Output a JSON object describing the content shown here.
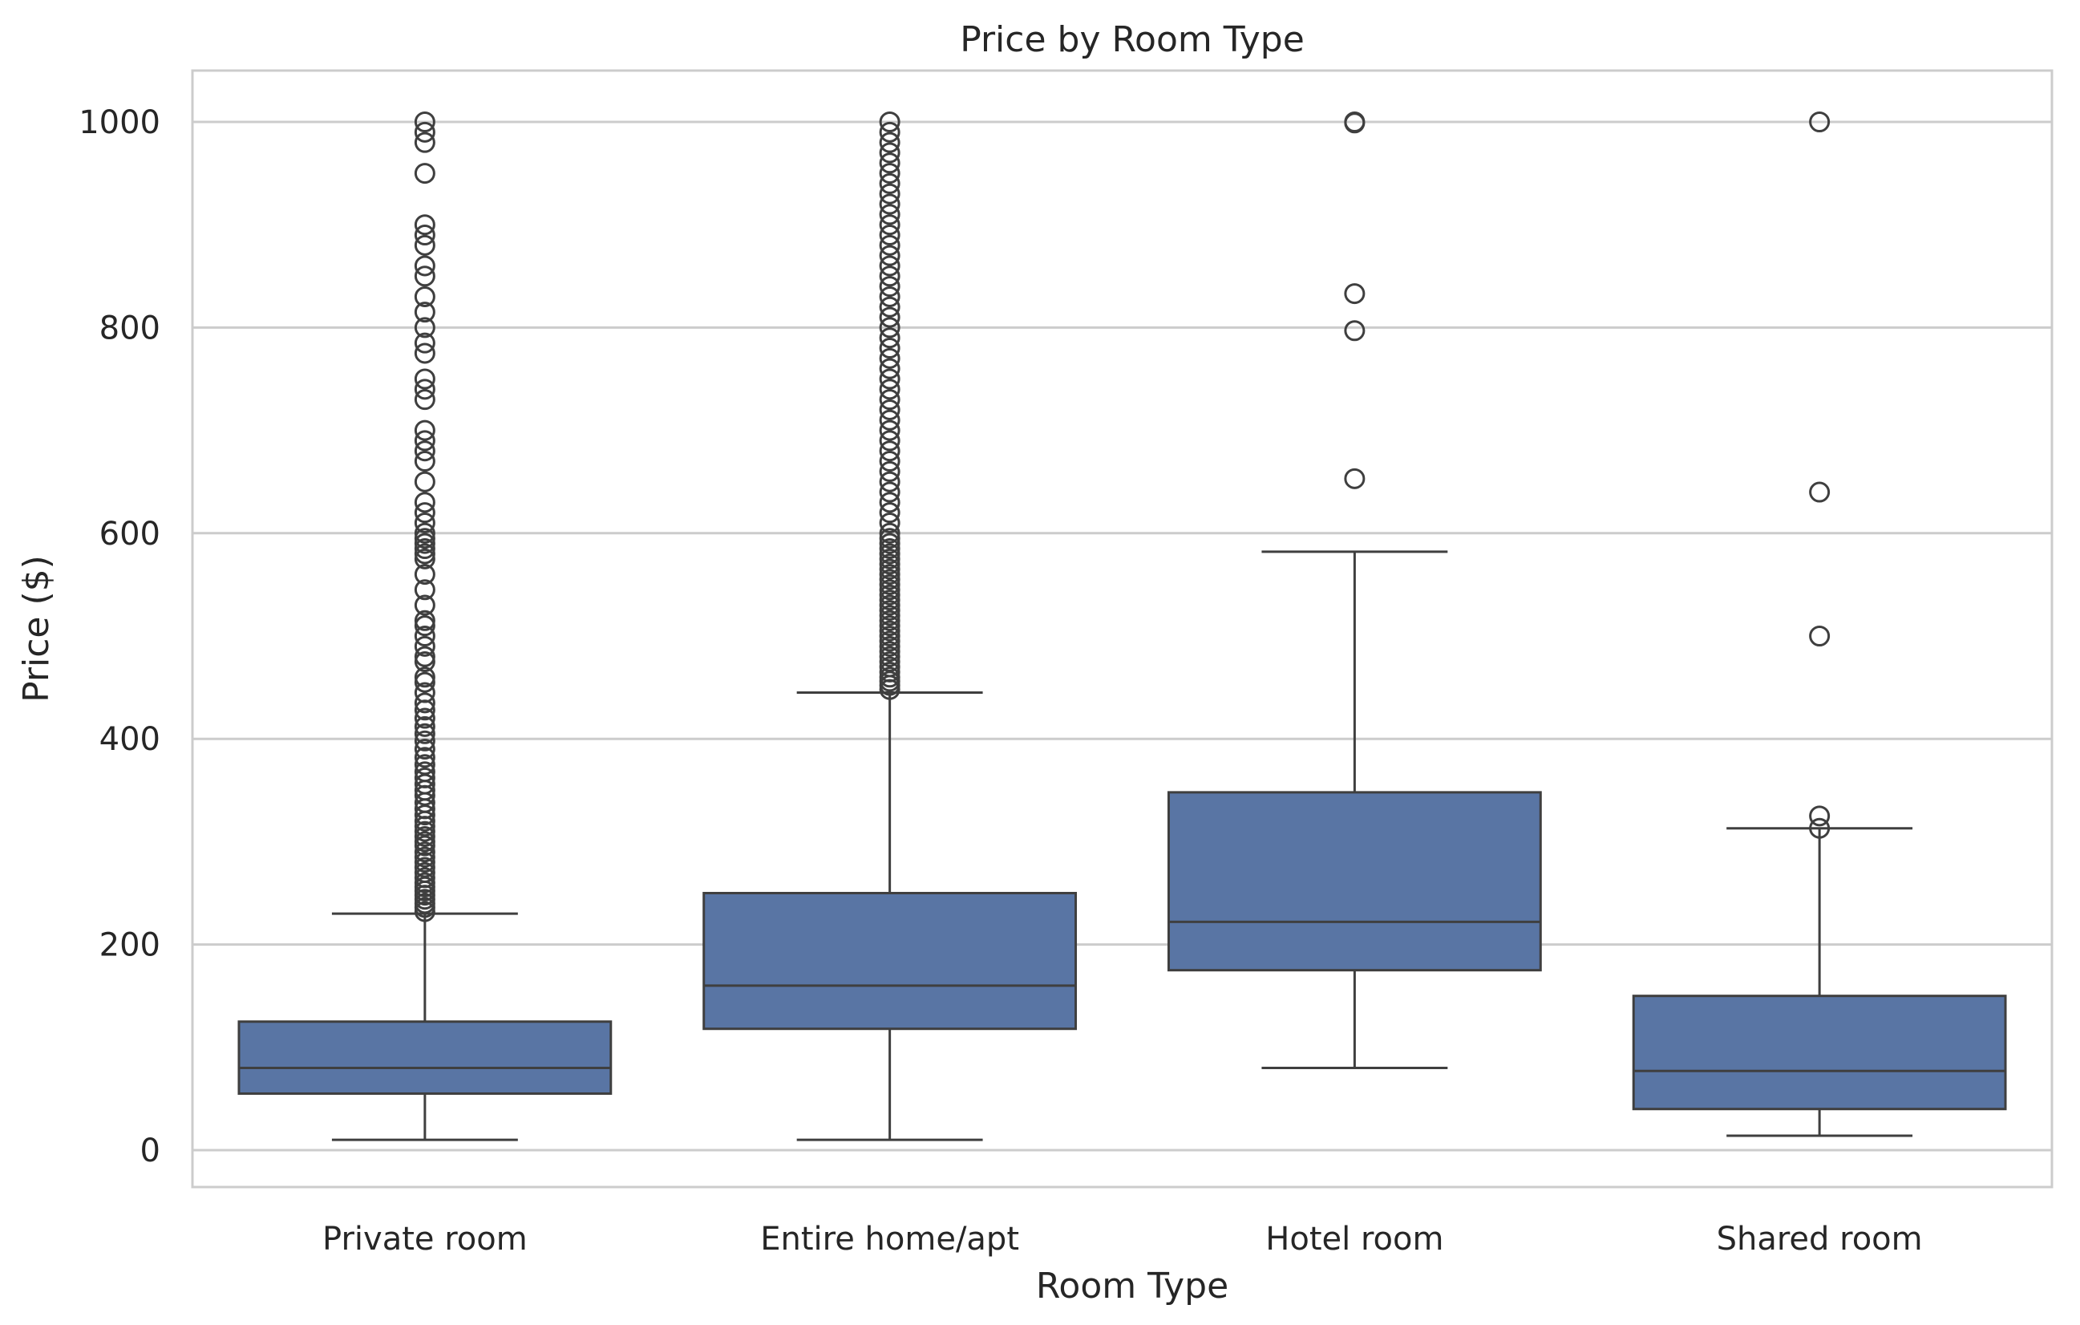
{
  "chart_data": {
    "type": "box",
    "title": "Price by Room Type",
    "xlabel": "Room Type",
    "ylabel": "Price ($)",
    "ylim": [
      -38,
      1050
    ],
    "yticks": [
      0,
      200,
      400,
      600,
      800,
      1000
    ],
    "ytick_labels": [
      "0",
      "200",
      "400",
      "600",
      "800",
      "1000"
    ],
    "grid": "horizontal",
    "colors": {
      "box_fill": "#5975a4",
      "line": "#3f3f3f",
      "grid": "#cccccc",
      "frame": "#cccccc"
    },
    "categories": [
      "Private room",
      "Entire home/apt",
      "Hotel room",
      "Shared room"
    ],
    "boxes": [
      {
        "category": "Private room",
        "whisker_low": 10,
        "q1": 55,
        "median": 80,
        "q3": 125,
        "whisker_high": 230,
        "outliers": [
          232,
          236,
          240,
          244,
          248,
          252,
          256,
          260,
          265,
          270,
          275,
          280,
          285,
          290,
          296,
          300,
          305,
          310,
          315,
          320,
          326,
          332,
          338,
          345,
          350,
          356,
          362,
          368,
          375,
          382,
          390,
          398,
          405,
          412,
          420,
          428,
          435,
          445,
          455,
          460,
          475,
          480,
          490,
          500,
          510,
          515,
          530,
          545,
          560,
          575,
          580,
          585,
          590,
          595,
          600,
          610,
          620,
          630,
          650,
          670,
          680,
          690,
          700,
          730,
          740,
          750,
          775,
          785,
          800,
          815,
          830,
          850,
          860,
          880,
          890,
          900,
          950,
          980,
          990,
          1000
        ]
      },
      {
        "category": "Entire home/apt",
        "whisker_low": 10,
        "q1": 118,
        "median": 160,
        "q3": 250,
        "whisker_high": 445,
        "outliers": [
          448,
          452,
          456,
          460,
          465,
          470,
          475,
          480,
          485,
          490,
          495,
          500,
          505,
          510,
          515,
          520,
          525,
          530,
          535,
          540,
          545,
          550,
          555,
          560,
          565,
          570,
          575,
          580,
          585,
          590,
          595,
          600,
          610,
          620,
          630,
          640,
          650,
          660,
          670,
          680,
          690,
          700,
          710,
          720,
          730,
          740,
          750,
          760,
          770,
          780,
          790,
          800,
          810,
          820,
          830,
          840,
          850,
          860,
          870,
          880,
          890,
          900,
          910,
          920,
          930,
          940,
          950,
          960,
          970,
          980,
          990,
          1000
        ]
      },
      {
        "category": "Hotel room",
        "whisker_low": 80,
        "q1": 175,
        "median": 222,
        "q3": 348,
        "whisker_high": 582,
        "outliers": [
          653,
          797,
          833,
          999,
          1000
        ]
      },
      {
        "category": "Shared room",
        "whisker_low": 14,
        "q1": 40,
        "median": 77,
        "q3": 150,
        "whisker_high": 313,
        "outliers": [
          313,
          325,
          500,
          640,
          1000
        ]
      }
    ]
  }
}
